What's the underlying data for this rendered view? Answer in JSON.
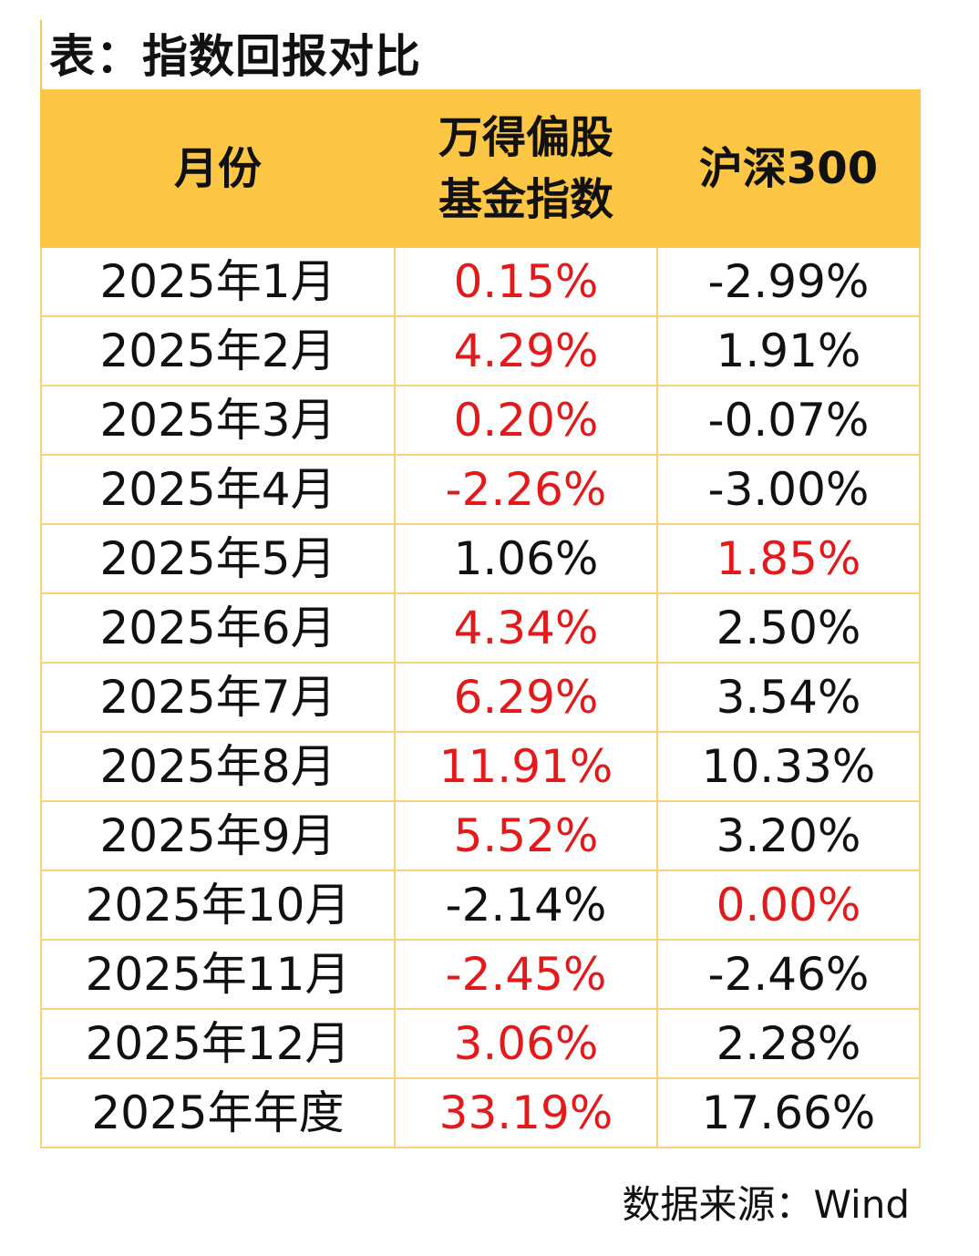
{
  "title": "表：指数回报对比",
  "table": {
    "headers": [
      {
        "line1": "月份",
        "line2": ""
      },
      {
        "line1": "万得偏股",
        "line2": "基金指数"
      },
      {
        "line1": "沪深300",
        "line2": ""
      }
    ],
    "rows": [
      {
        "month": "2025年1月",
        "fund_index": "0.15%",
        "hs300": "-2.99%",
        "highlight": "fund_index"
      },
      {
        "month": "2025年2月",
        "fund_index": "4.29%",
        "hs300": "1.91%",
        "highlight": "fund_index"
      },
      {
        "month": "2025年3月",
        "fund_index": "0.20%",
        "hs300": "-0.07%",
        "highlight": "fund_index"
      },
      {
        "month": "2025年4月",
        "fund_index": "-2.26%",
        "hs300": "-3.00%",
        "highlight": "fund_index"
      },
      {
        "month": "2025年5月",
        "fund_index": "1.06%",
        "hs300": "1.85%",
        "highlight": "hs300"
      },
      {
        "month": "2025年6月",
        "fund_index": "4.34%",
        "hs300": "2.50%",
        "highlight": "fund_index"
      },
      {
        "month": "2025年7月",
        "fund_index": "6.29%",
        "hs300": "3.54%",
        "highlight": "fund_index"
      },
      {
        "month": "2025年8月",
        "fund_index": "11.91%",
        "hs300": "10.33%",
        "highlight": "fund_index"
      },
      {
        "month": "2025年9月",
        "fund_index": "5.52%",
        "hs300": "3.20%",
        "highlight": "fund_index"
      },
      {
        "month": "2025年10月",
        "fund_index": "-2.14%",
        "hs300": "0.00%",
        "highlight": "hs300"
      },
      {
        "month": "2025年11月",
        "fund_index": "-2.45%",
        "hs300": "-2.46%",
        "highlight": "fund_index"
      },
      {
        "month": "2025年12月",
        "fund_index": "3.06%",
        "hs300": "2.28%",
        "highlight": "fund_index"
      },
      {
        "month": "2025年年度",
        "fund_index": "33.19%",
        "hs300": "17.66%",
        "highlight": "fund_index"
      }
    ]
  },
  "source": "数据来源：Wind",
  "colors": {
    "header_bg": "#fdc645",
    "border": "#f6d27a",
    "highlight_text": "#e31a1c",
    "normal_text": "#111111"
  }
}
